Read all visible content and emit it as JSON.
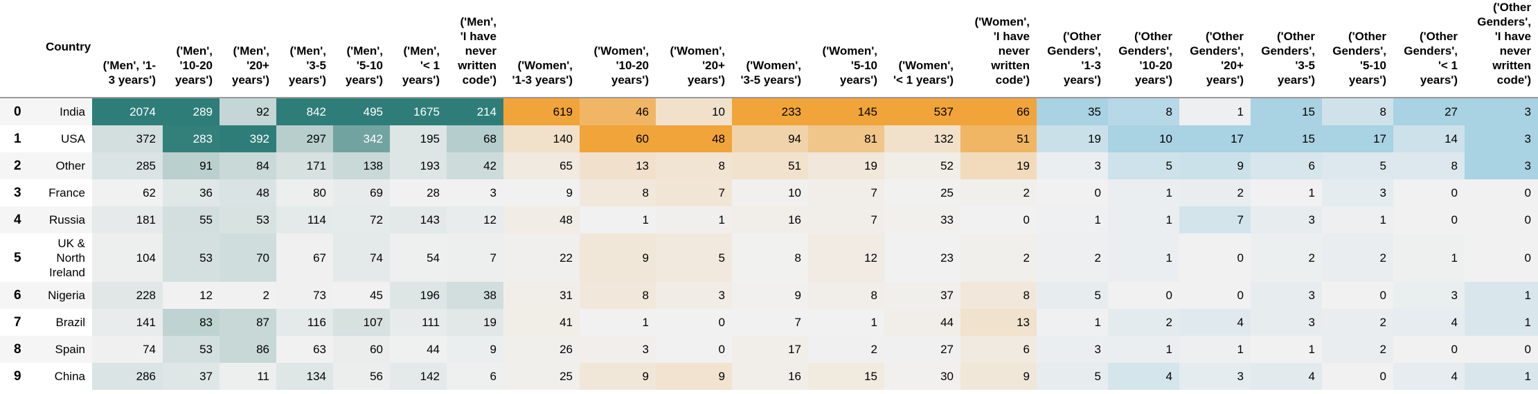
{
  "table": {
    "country_header": "Country",
    "columns": [
      "('Men', '1-3 years')",
      "('Men', '10-20 years')",
      "('Men', '20+ years')",
      "('Men', '3-5 years')",
      "('Men', '5-10 years')",
      "('Men', '< 1 years')",
      "('Men', 'I have never written code')",
      "('Women', '1-3 years')",
      "('Women', '10-20 years')",
      "('Women', '20+ years')",
      "('Women', '3-5 years')",
      "('Women', '5-10 years')",
      "('Women', '< 1 years')",
      "('Women', 'I have never written code')",
      "('Other Genders', '1-3 years')",
      "('Other Genders', '10-20 years')",
      "('Other Genders', '20+ years')",
      "('Other Genders', '3-5 years')",
      "('Other Genders', '5-10 years')",
      "('Other Genders', '< 1 years')",
      "('Other Genders', 'I have never written code')"
    ],
    "rows": [
      {
        "idx": "0",
        "country": "India",
        "values": [
          2074,
          289,
          92,
          842,
          495,
          1675,
          214,
          619,
          46,
          10,
          233,
          145,
          537,
          66,
          35,
          8,
          1,
          15,
          8,
          27,
          3
        ]
      },
      {
        "idx": "1",
        "country": "USA",
        "values": [
          372,
          283,
          392,
          297,
          342,
          195,
          68,
          140,
          60,
          48,
          94,
          81,
          132,
          51,
          19,
          10,
          17,
          15,
          17,
          14,
          3
        ]
      },
      {
        "idx": "2",
        "country": "Other",
        "values": [
          285,
          91,
          84,
          171,
          138,
          193,
          42,
          65,
          13,
          8,
          51,
          19,
          52,
          19,
          3,
          5,
          9,
          6,
          5,
          8,
          3
        ]
      },
      {
        "idx": "3",
        "country": "France",
        "values": [
          62,
          36,
          48,
          80,
          69,
          28,
          3,
          9,
          8,
          7,
          10,
          7,
          25,
          2,
          0,
          1,
          2,
          1,
          3,
          0,
          0
        ]
      },
      {
        "idx": "4",
        "country": "Russia",
        "values": [
          181,
          55,
          53,
          114,
          72,
          143,
          12,
          48,
          1,
          1,
          16,
          7,
          33,
          0,
          1,
          1,
          7,
          3,
          1,
          0,
          0
        ]
      },
      {
        "idx": "5",
        "country": "UK & North Ireland",
        "values": [
          104,
          53,
          70,
          67,
          74,
          54,
          7,
          22,
          9,
          5,
          8,
          12,
          23,
          2,
          2,
          1,
          0,
          2,
          2,
          1,
          0
        ]
      },
      {
        "idx": "6",
        "country": "Nigeria",
        "values": [
          228,
          12,
          2,
          73,
          45,
          196,
          38,
          31,
          8,
          3,
          9,
          8,
          37,
          8,
          5,
          0,
          0,
          3,
          0,
          3,
          1
        ]
      },
      {
        "idx": "7",
        "country": "Brazil",
        "values": [
          141,
          83,
          87,
          116,
          107,
          111,
          19,
          41,
          1,
          0,
          7,
          1,
          44,
          13,
          1,
          2,
          4,
          3,
          2,
          4,
          1
        ]
      },
      {
        "idx": "8",
        "country": "Spain",
        "values": [
          74,
          53,
          86,
          63,
          60,
          44,
          9,
          26,
          3,
          0,
          17,
          2,
          27,
          6,
          3,
          1,
          1,
          1,
          2,
          0,
          0
        ]
      },
      {
        "idx": "9",
        "country": "China",
        "values": [
          286,
          37,
          11,
          134,
          56,
          142,
          6,
          25,
          9,
          9,
          16,
          15,
          30,
          9,
          5,
          4,
          3,
          4,
          0,
          4,
          1
        ]
      }
    ]
  },
  "colors": {
    "men_high": "#2f7d78",
    "women_high": "#f0a43a",
    "other_high": "#a9d2e3",
    "low": "#f1f1f1"
  }
}
